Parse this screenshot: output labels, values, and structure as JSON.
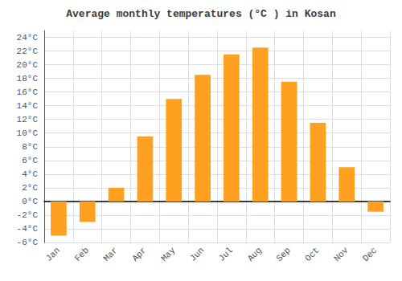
{
  "chart_data": {
    "type": "bar",
    "title": "Average monthly temperatures (°C ) in Kosan",
    "categories": [
      "Jan",
      "Feb",
      "Mar",
      "Apr",
      "May",
      "Jun",
      "Jul",
      "Aug",
      "Sep",
      "Oct",
      "Nov",
      "Dec"
    ],
    "values": [
      -5.0,
      -3.0,
      2.0,
      9.5,
      15.0,
      18.5,
      21.5,
      22.5,
      17.5,
      11.5,
      5.0,
      -1.5
    ],
    "color": "#FFA020",
    "ylim": [
      -6,
      25
    ],
    "yticks": [
      {
        "value": -6,
        "label": "-6°C"
      },
      {
        "value": -4,
        "label": "-4°C"
      },
      {
        "value": -2,
        "label": "-2°C"
      },
      {
        "value": 0,
        "label": "0°C"
      },
      {
        "value": 2,
        "label": "2°C"
      },
      {
        "value": 4,
        "label": "4°C"
      },
      {
        "value": 6,
        "label": "6°C"
      },
      {
        "value": 8,
        "label": "8°C"
      },
      {
        "value": 10,
        "label": "10°C"
      },
      {
        "value": 12,
        "label": "12°C"
      },
      {
        "value": 14,
        "label": "14°C"
      },
      {
        "value": 16,
        "label": "16°C"
      },
      {
        "value": 18,
        "label": "18°C"
      },
      {
        "value": 20,
        "label": "20°C"
      },
      {
        "value": 22,
        "label": "22°C"
      },
      {
        "value": 24,
        "label": "24°C"
      }
    ],
    "grid": true
  }
}
